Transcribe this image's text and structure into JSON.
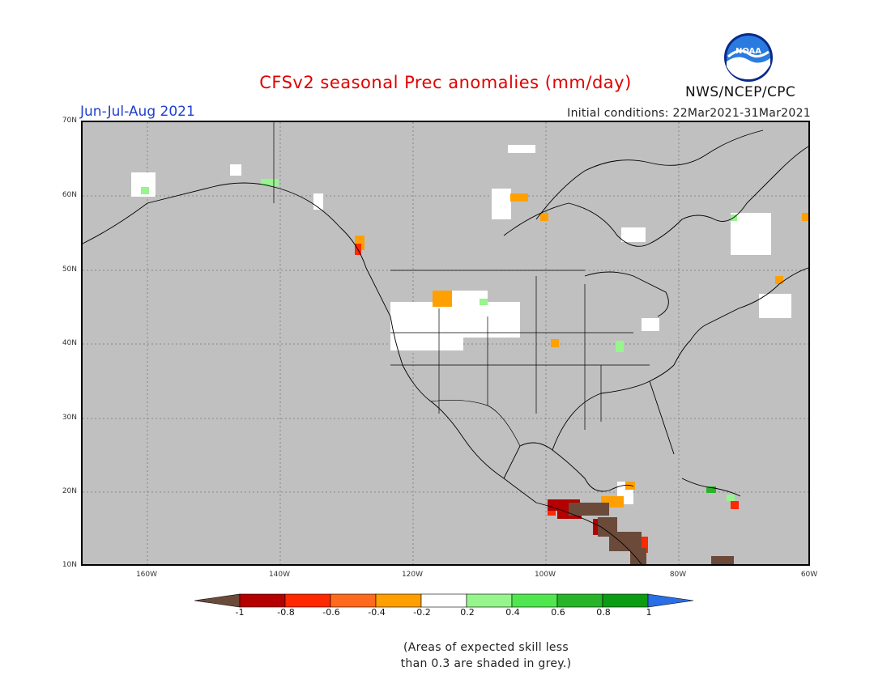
{
  "title": "CFSv2 seasonal Prec anomalies (mm/day)",
  "season": "Jun-Jul-Aug 2021",
  "initial_conditions": "Initial conditions: 22Mar2021-31Mar2021",
  "org": "NWS/NCEP/CPC",
  "logo_text": "NOAA",
  "lat_labels": [
    "70N",
    "60N",
    "50N",
    "40N",
    "30N",
    "20N",
    "10N"
  ],
  "lon_labels": [
    "160W",
    "140W",
    "120W",
    "100W",
    "80W",
    "60W"
  ],
  "colorbar": {
    "ticks": [
      "-1",
      "-0.8",
      "-0.6",
      "-0.4",
      "-0.2",
      "0.2",
      "0.4",
      "0.6",
      "0.8",
      "1"
    ],
    "colors": [
      "#6b4a3a",
      "#b40000",
      "#ff2800",
      "#ff6a1e",
      "#ffa000",
      "#ffffff",
      "#96f58c",
      "#50e650",
      "#28b428",
      "#0c9c14",
      "#2a6fe6"
    ]
  },
  "note_line1": "(Areas of expected skill less",
  "note_line2": "than 0.3 are shaded in grey.)"
}
